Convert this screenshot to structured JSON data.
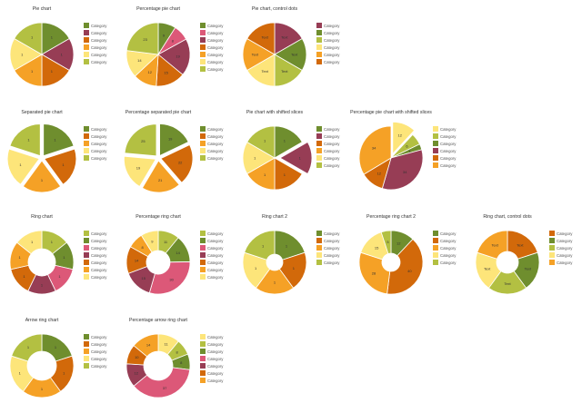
{
  "palette": {
    "olive": "#6f8e2e",
    "yellow_green": "#b3c042",
    "light_yellow": "#fde57a",
    "orange": "#f5a126",
    "dark_orange": "#d2690a",
    "burgundy": "#973d55",
    "pink": "#dc5878"
  },
  "chart_data": [
    {
      "type": "pie",
      "title": "Pie chart",
      "legend": [
        "Category",
        "Category",
        "Category",
        "Category",
        "Category",
        "Category"
      ],
      "slices": [
        {
          "value": 1,
          "label": "1",
          "color": "#6f8e2e"
        },
        {
          "value": 1,
          "label": "1",
          "color": "#973d55"
        },
        {
          "value": 1,
          "label": "1",
          "color": "#d2690a"
        },
        {
          "value": 1,
          "label": "1",
          "color": "#f5a126"
        },
        {
          "value": 1,
          "label": "1",
          "color": "#fde57a"
        },
        {
          "value": 1,
          "label": "1",
          "color": "#b3c042"
        }
      ]
    },
    {
      "type": "pie",
      "title": "Percentage pie chart",
      "legend": [
        "Category",
        "Category",
        "Category",
        "Category",
        "Category",
        "Category",
        "Category"
      ],
      "slices": [
        {
          "value": 9,
          "label": "9",
          "color": "#6f8e2e"
        },
        {
          "value": 8,
          "label": "8",
          "color": "#dc5878"
        },
        {
          "value": 19,
          "label": "19",
          "color": "#973d55"
        },
        {
          "value": 15,
          "label": "15",
          "color": "#d2690a"
        },
        {
          "value": 12,
          "label": "12",
          "color": "#f5a126"
        },
        {
          "value": 14,
          "label": "14",
          "color": "#fde57a"
        },
        {
          "value": 23,
          "label": "23",
          "color": "#b3c042"
        }
      ]
    },
    {
      "type": "pie",
      "title": "Pie chart, control dots",
      "legend": [
        "Category",
        "Category",
        "Category",
        "Category",
        "Category",
        "Category"
      ],
      "slices": [
        {
          "value": 1,
          "label": "Text",
          "color": "#973d55"
        },
        {
          "value": 1,
          "label": "Text",
          "color": "#6f8e2e"
        },
        {
          "value": 1,
          "label": "Text",
          "color": "#b3c042"
        },
        {
          "value": 1,
          "label": "Text",
          "color": "#fde57a"
        },
        {
          "value": 1,
          "label": "Text",
          "color": "#f5a126"
        },
        {
          "value": 1,
          "label": "Text",
          "color": "#d2690a"
        }
      ]
    },
    {
      "type": "pie",
      "title": "Separated pie chart",
      "legend": [
        "Category",
        "Category",
        "Category",
        "Category",
        "Category"
      ],
      "slices": [
        {
          "value": 1,
          "label": "1",
          "color": "#6f8e2e"
        },
        {
          "value": 1,
          "label": "1",
          "color": "#d2690a"
        },
        {
          "value": 1,
          "label": "1",
          "color": "#f5a126"
        },
        {
          "value": 1,
          "label": "1",
          "color": "#fde57a"
        },
        {
          "value": 1,
          "label": "1",
          "color": "#b3c042"
        }
      ]
    },
    {
      "type": "pie",
      "title": "Percentage separated pie chart",
      "legend": [
        "Category",
        "Category",
        "Category",
        "Category",
        "Category"
      ],
      "slices": [
        {
          "value": 19,
          "label": "19",
          "color": "#6f8e2e"
        },
        {
          "value": 22,
          "label": "22",
          "color": "#d2690a"
        },
        {
          "value": 21,
          "label": "21",
          "color": "#f5a126"
        },
        {
          "value": 19,
          "label": "19",
          "color": "#fde57a"
        },
        {
          "value": 25,
          "label": "25",
          "color": "#b3c042"
        }
      ]
    },
    {
      "type": "pie",
      "title": "Pie chart with shifted slices",
      "legend": [
        "Category",
        "Category",
        "Category",
        "Category",
        "Category",
        "Category"
      ],
      "slices": [
        {
          "value": 1,
          "label": "1",
          "color": "#6f8e2e"
        },
        {
          "value": 1,
          "label": "1",
          "color": "#973d55"
        },
        {
          "value": 1,
          "label": "1",
          "color": "#d2690a"
        },
        {
          "value": 1,
          "label": "1",
          "color": "#f5a126"
        },
        {
          "value": 1,
          "label": "1",
          "color": "#fde57a"
        },
        {
          "value": 1,
          "label": "1",
          "color": "#b3c042"
        }
      ]
    },
    {
      "type": "pie",
      "title": "Percentage pie chart with shifted slices",
      "legend": [
        "Category",
        "Category",
        "Category",
        "Category",
        "Category",
        "Category"
      ],
      "slices": [
        {
          "value": 12,
          "label": "12",
          "color": "#fde57a"
        },
        {
          "value": 6,
          "label": "6",
          "color": "#b3c042"
        },
        {
          "value": 3,
          "label": "3",
          "color": "#6f8e2e"
        },
        {
          "value": 34,
          "label": "34",
          "color": "#973d55"
        },
        {
          "value": 12,
          "label": "12",
          "color": "#d2690a"
        },
        {
          "value": 34,
          "label": "34",
          "color": "#f5a126"
        }
      ]
    },
    {
      "type": "ring",
      "title": "Ring chart",
      "legend": [
        "Category",
        "Category",
        "Category",
        "Category",
        "Category",
        "Category",
        "Category"
      ],
      "slices": [
        {
          "value": 1,
          "label": "1",
          "color": "#b3c042"
        },
        {
          "value": 1,
          "label": "1",
          "color": "#6f8e2e"
        },
        {
          "value": 1,
          "label": "1",
          "color": "#dc5878"
        },
        {
          "value": 1,
          "label": "1",
          "color": "#973d55"
        },
        {
          "value": 1,
          "label": "1",
          "color": "#d2690a"
        },
        {
          "value": 1,
          "label": "1",
          "color": "#f5a126"
        },
        {
          "value": 1,
          "label": "1",
          "color": "#fde57a"
        }
      ]
    },
    {
      "type": "ring",
      "title": "Percentage ring chart",
      "legend": [
        "Category",
        "Category",
        "Category",
        "Category",
        "Category",
        "Category",
        "Category"
      ],
      "slices": [
        {
          "value": 11,
          "label": "11",
          "color": "#b3c042"
        },
        {
          "value": 14,
          "label": "14",
          "color": "#6f8e2e"
        },
        {
          "value": 30,
          "label": "30",
          "color": "#dc5878"
        },
        {
          "value": 15,
          "label": "15",
          "color": "#973d55"
        },
        {
          "value": 14,
          "label": "14",
          "color": "#d2690a"
        },
        {
          "value": 8,
          "label": "8",
          "color": "#f5a126"
        },
        {
          "value": 9,
          "label": "9",
          "color": "#fde57a"
        }
      ]
    },
    {
      "type": "ring",
      "title": "Ring chart 2",
      "legend": [
        "Category",
        "Category",
        "Category",
        "Category",
        "Category"
      ],
      "slices": [
        {
          "value": 1,
          "label": "1",
          "color": "#6f8e2e"
        },
        {
          "value": 1,
          "label": "1",
          "color": "#d2690a"
        },
        {
          "value": 1,
          "label": "1",
          "color": "#f5a126"
        },
        {
          "value": 1,
          "label": "1",
          "color": "#fde57a"
        },
        {
          "value": 1,
          "label": "1",
          "color": "#b3c042"
        }
      ]
    },
    {
      "type": "ring",
      "title": "Percentage ring chart 2",
      "legend": [
        "Category",
        "Category",
        "Category",
        "Category",
        "Category"
      ],
      "slices": [
        {
          "value": 12,
          "label": "12",
          "color": "#6f8e2e"
        },
        {
          "value": 40,
          "label": "40",
          "color": "#d2690a"
        },
        {
          "value": 28,
          "label": "28",
          "color": "#f5a126"
        },
        {
          "value": 15,
          "label": "15",
          "color": "#fde57a"
        },
        {
          "value": 5,
          "label": "5",
          "color": "#b3c042"
        }
      ]
    },
    {
      "type": "ring",
      "title": "Ring chart, control dots",
      "legend": [
        "Category",
        "Category",
        "Category",
        "Category",
        "Category"
      ],
      "slices": [
        {
          "value": 1,
          "label": "Text",
          "color": "#d2690a"
        },
        {
          "value": 1,
          "label": "Text",
          "color": "#6f8e2e"
        },
        {
          "value": 1,
          "label": "Text",
          "color": "#b3c042"
        },
        {
          "value": 1,
          "label": "Text",
          "color": "#fde57a"
        },
        {
          "value": 1,
          "label": "Text",
          "color": "#f5a126"
        }
      ]
    },
    {
      "type": "ring",
      "title": "Arrow ring chart",
      "legend": [
        "Category",
        "Category",
        "Category",
        "Category",
        "Category"
      ],
      "slices": [
        {
          "value": 1,
          "label": "1",
          "color": "#6f8e2e"
        },
        {
          "value": 1,
          "label": "1",
          "color": "#d2690a"
        },
        {
          "value": 1,
          "label": "1",
          "color": "#f5a126"
        },
        {
          "value": 1,
          "label": "1",
          "color": "#fde57a"
        },
        {
          "value": 1,
          "label": "1",
          "color": "#b3c042"
        }
      ]
    },
    {
      "type": "ring",
      "title": "Percentage arrow ring chart",
      "legend": [
        "Category",
        "Category",
        "Category",
        "Category",
        "Category",
        "Category",
        "Category"
      ],
      "slices": [
        {
          "value": 11,
          "label": "11",
          "color": "#fde57a"
        },
        {
          "value": 8,
          "label": "8",
          "color": "#b3c042"
        },
        {
          "value": 8,
          "label": "8",
          "color": "#6f8e2e"
        },
        {
          "value": 37,
          "label": "37",
          "color": "#dc5878"
        },
        {
          "value": 12,
          "label": "12",
          "color": "#973d55"
        },
        {
          "value": 10,
          "label": "10",
          "color": "#d2690a"
        },
        {
          "value": 14,
          "label": "14",
          "color": "#f5a126"
        }
      ]
    }
  ]
}
